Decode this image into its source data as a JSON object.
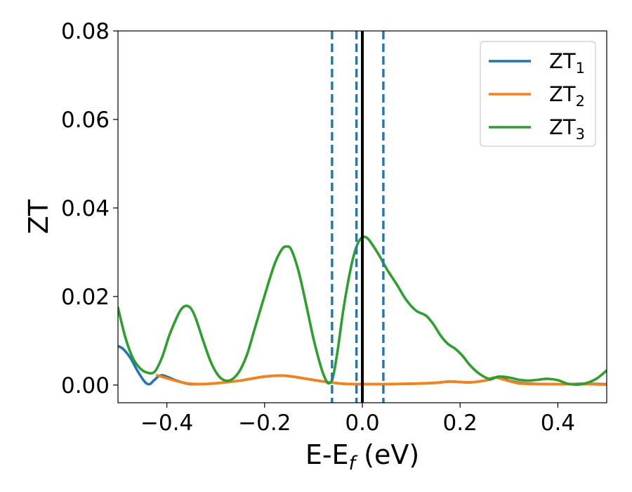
{
  "chart_data": {
    "type": "line",
    "xlabel": "E-E",
    "xlabel_sub": "f",
    "xlabel_unit": " (eV)",
    "ylabel": "ZT",
    "xlim": [
      -0.5,
      0.5
    ],
    "ylim": [
      -0.004,
      0.08
    ],
    "x_ticks": [
      -0.4,
      -0.2,
      0.0,
      0.2,
      0.4
    ],
    "x_tick_labels": [
      "−0.4",
      "−0.2",
      "0.0",
      "0.2",
      "0.4"
    ],
    "y_ticks": [
      0.0,
      0.02,
      0.04,
      0.06,
      0.08
    ],
    "y_tick_labels": [
      "0.00",
      "0.02",
      "0.04",
      "0.06",
      "0.08"
    ],
    "grid": false,
    "legend_position": "top-right",
    "vlines": [
      {
        "x": -0.062,
        "style": "dashed",
        "color": "#1f77b4"
      },
      {
        "x": -0.012,
        "style": "dashed",
        "color": "#1f77b4"
      },
      {
        "x": 0.0,
        "style": "solid",
        "color": "#000000"
      },
      {
        "x": 0.043,
        "style": "dashed",
        "color": "#1f77b4"
      }
    ],
    "series": [
      {
        "name": "ZT",
        "name_sub": "1",
        "color": "#1f77b4",
        "points": [
          [
            -0.5,
            0.0088
          ],
          [
            -0.49,
            0.0082
          ],
          [
            -0.475,
            0.0062
          ],
          [
            -0.46,
            0.0032
          ],
          [
            -0.445,
            0.0007
          ],
          [
            -0.435,
            0.0002
          ],
          [
            -0.425,
            0.0012
          ],
          [
            -0.41,
            0.0022
          ],
          [
            -0.38,
            0.001
          ],
          [
            -0.35,
            0.0002
          ],
          [
            -0.3,
            0.0004
          ],
          [
            -0.25,
            0.001
          ],
          [
            -0.2,
            0.0019
          ],
          [
            -0.16,
            0.0021
          ],
          [
            -0.12,
            0.0015
          ],
          [
            -0.08,
            0.0008
          ],
          [
            -0.04,
            0.0003
          ],
          [
            0.0,
            0.0002
          ],
          [
            0.05,
            0.0002
          ],
          [
            0.1,
            0.0003
          ],
          [
            0.15,
            0.0005
          ],
          [
            0.18,
            0.0008
          ],
          [
            0.22,
            0.0006
          ],
          [
            0.26,
            0.0012
          ],
          [
            0.28,
            0.0019
          ],
          [
            0.3,
            0.001
          ],
          [
            0.33,
            0.0004
          ],
          [
            0.38,
            0.0002
          ],
          [
            0.42,
            0.0002
          ],
          [
            0.45,
            0.0003
          ],
          [
            0.5,
            0.0002
          ]
        ]
      },
      {
        "name": "ZT",
        "name_sub": "2",
        "color": "#ff7f0e",
        "points": [
          [
            -0.42,
            0.0022
          ],
          [
            -0.39,
            0.0012
          ],
          [
            -0.36,
            0.0004
          ],
          [
            -0.33,
            0.0002
          ],
          [
            -0.3,
            0.0004
          ],
          [
            -0.25,
            0.001
          ],
          [
            -0.2,
            0.0019
          ],
          [
            -0.16,
            0.0021
          ],
          [
            -0.12,
            0.0015
          ],
          [
            -0.08,
            0.0008
          ],
          [
            -0.04,
            0.0003
          ],
          [
            0.0,
            0.0002
          ],
          [
            0.05,
            0.0002
          ],
          [
            0.1,
            0.0003
          ],
          [
            0.15,
            0.0005
          ],
          [
            0.18,
            0.0008
          ],
          [
            0.22,
            0.0006
          ],
          [
            0.25,
            0.001
          ],
          [
            0.27,
            0.0017
          ],
          [
            0.29,
            0.0012
          ],
          [
            0.32,
            0.0004
          ],
          [
            0.36,
            0.0002
          ],
          [
            0.4,
            0.0002
          ],
          [
            0.45,
            0.0002
          ],
          [
            0.5,
            0.0001
          ]
        ]
      },
      {
        "name": "ZT",
        "name_sub": "3",
        "color": "#2ca02c",
        "points": [
          [
            -0.5,
            0.0175
          ],
          [
            -0.485,
            0.0108
          ],
          [
            -0.47,
            0.0062
          ],
          [
            -0.455,
            0.0038
          ],
          [
            -0.44,
            0.0028
          ],
          [
            -0.425,
            0.003
          ],
          [
            -0.41,
            0.0062
          ],
          [
            -0.395,
            0.0112
          ],
          [
            -0.38,
            0.0152
          ],
          [
            -0.37,
            0.0172
          ],
          [
            -0.36,
            0.0179
          ],
          [
            -0.35,
            0.0172
          ],
          [
            -0.34,
            0.0148
          ],
          [
            -0.325,
            0.0098
          ],
          [
            -0.31,
            0.0052
          ],
          [
            -0.295,
            0.0022
          ],
          [
            -0.28,
            0.001
          ],
          [
            -0.265,
            0.0014
          ],
          [
            -0.25,
            0.0034
          ],
          [
            -0.235,
            0.0072
          ],
          [
            -0.22,
            0.0128
          ],
          [
            -0.2,
            0.0202
          ],
          [
            -0.18,
            0.0272
          ],
          [
            -0.165,
            0.0306
          ],
          [
            -0.155,
            0.0313
          ],
          [
            -0.145,
            0.0305
          ],
          [
            -0.13,
            0.0255
          ],
          [
            -0.115,
            0.0182
          ],
          [
            -0.1,
            0.0105
          ],
          [
            -0.085,
            0.0042
          ],
          [
            -0.075,
            0.0012
          ],
          [
            -0.068,
            0.0004
          ],
          [
            -0.06,
            0.0018
          ],
          [
            -0.05,
            0.0082
          ],
          [
            -0.04,
            0.0162
          ],
          [
            -0.03,
            0.0228
          ],
          [
            -0.02,
            0.0282
          ],
          [
            -0.01,
            0.0318
          ],
          [
            0.0,
            0.0334
          ],
          [
            0.01,
            0.0332
          ],
          [
            0.02,
            0.0318
          ],
          [
            0.035,
            0.0292
          ],
          [
            0.05,
            0.0262
          ],
          [
            0.07,
            0.0228
          ],
          [
            0.09,
            0.0192
          ],
          [
            0.11,
            0.0168
          ],
          [
            0.13,
            0.0157
          ],
          [
            0.145,
            0.0138
          ],
          [
            0.16,
            0.0112
          ],
          [
            0.175,
            0.0093
          ],
          [
            0.19,
            0.0082
          ],
          [
            0.205,
            0.0066
          ],
          [
            0.22,
            0.0045
          ],
          [
            0.24,
            0.0025
          ],
          [
            0.26,
            0.0014
          ],
          [
            0.28,
            0.0019
          ],
          [
            0.3,
            0.0017
          ],
          [
            0.32,
            0.0012
          ],
          [
            0.34,
            0.001
          ],
          [
            0.36,
            0.0012
          ],
          [
            0.38,
            0.0014
          ],
          [
            0.4,
            0.0011
          ],
          [
            0.42,
            0.0003
          ],
          [
            0.44,
            0.0001
          ],
          [
            0.46,
            0.0005
          ],
          [
            0.48,
            0.0015
          ],
          [
            0.5,
            0.0033
          ]
        ]
      }
    ]
  }
}
